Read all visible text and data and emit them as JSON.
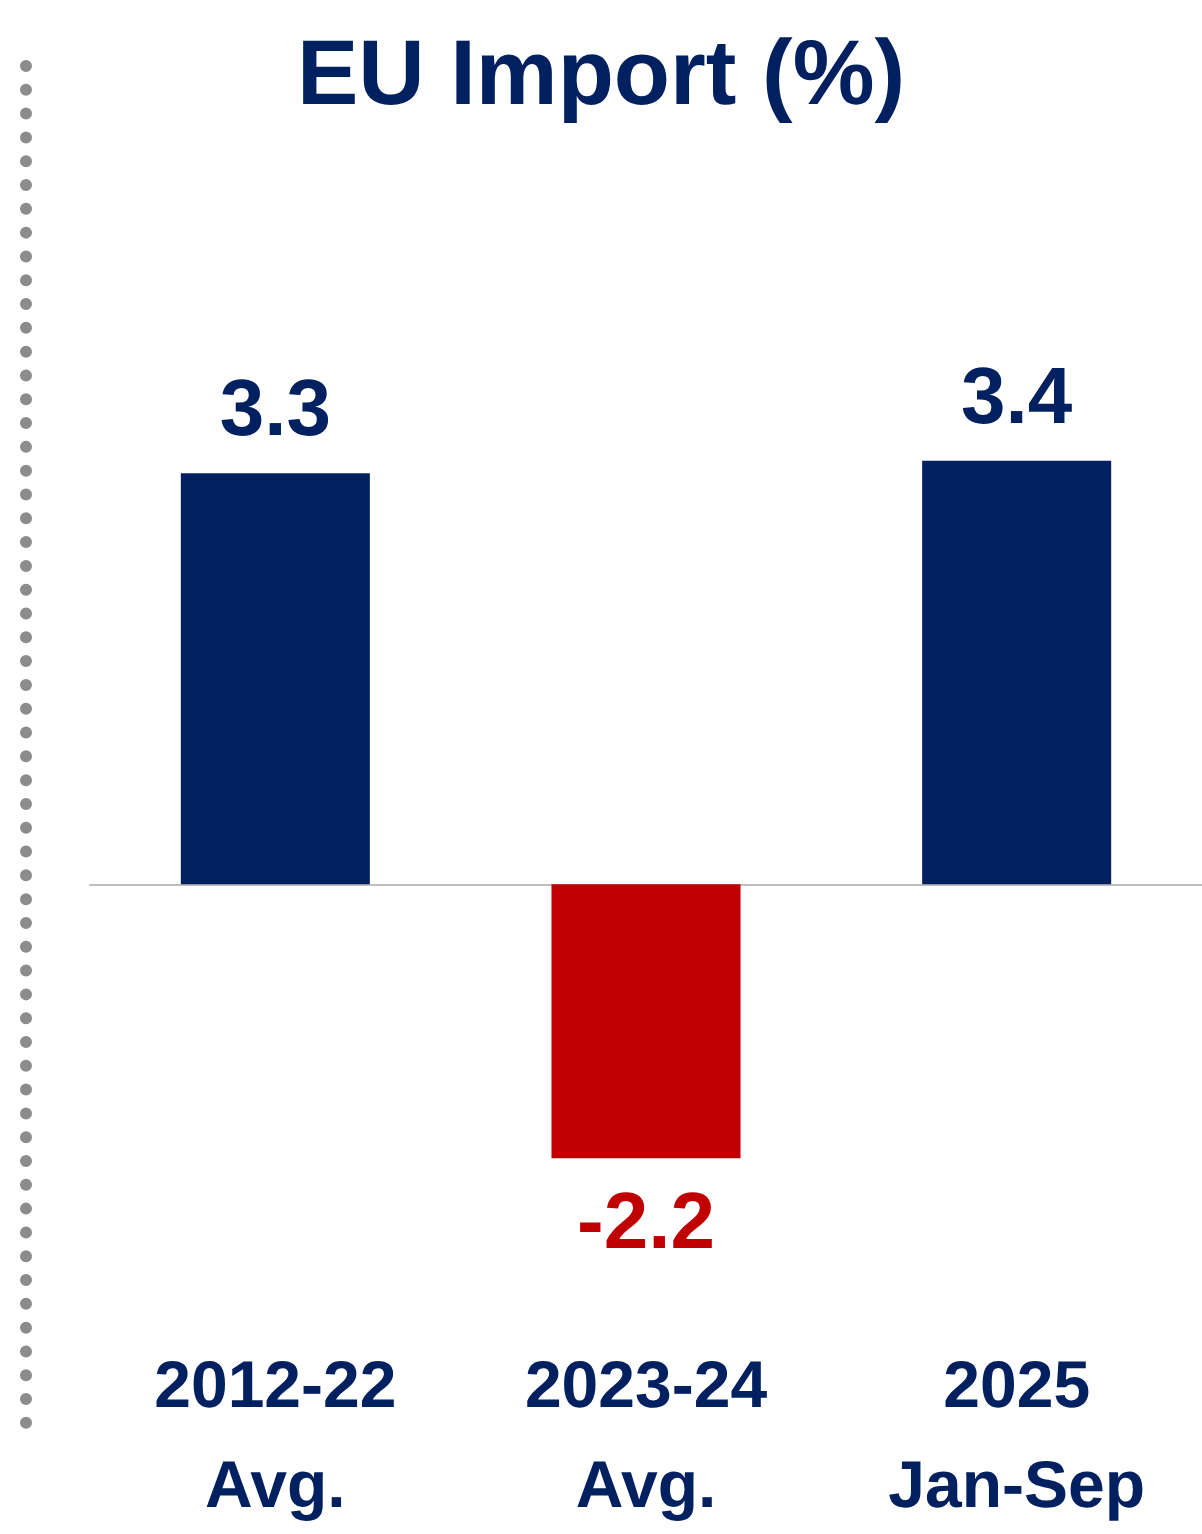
{
  "chart_data": {
    "type": "bar",
    "title": "EU Import (%)",
    "categories": [
      "2012-22\nAvg.",
      "2023-24\nAvg.",
      "2025\nJan-Sep"
    ],
    "values": [
      3.3,
      -2.2,
      3.4
    ],
    "colors": [
      "#002060",
      "#c00000",
      "#002060"
    ],
    "data_labels": true
  }
}
